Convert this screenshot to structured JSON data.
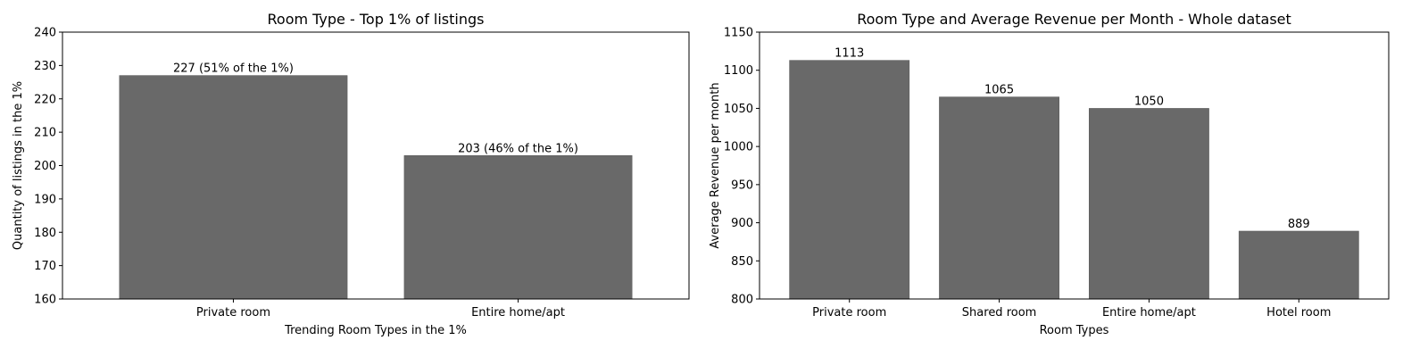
{
  "chart_data": [
    {
      "type": "bar",
      "title": "Room Type - Top 1% of listings",
      "xlabel": "Trending Room Types in the 1%",
      "ylabel": "Quantity of listings in the 1%",
      "categories": [
        "Private room",
        "Entire home/apt"
      ],
      "values": [
        227,
        203
      ],
      "data_labels": [
        "227 (51% of the 1%)",
        "203 (46% of the 1%)"
      ],
      "ylim": [
        160,
        240
      ],
      "yticks": [
        160,
        170,
        180,
        190,
        200,
        210,
        220,
        230,
        240
      ],
      "bar_color": "#696969",
      "grid": false
    },
    {
      "type": "bar",
      "title": "Room Type and Average Revenue per Month - Whole dataset",
      "xlabel": "Room Types",
      "ylabel": "Average Revenue per month",
      "categories": [
        "Private room",
        "Shared room",
        "Entire home/apt",
        "Hotel room"
      ],
      "values": [
        1113,
        1065,
        1050,
        889
      ],
      "data_labels": [
        "1113",
        "1065",
        "1050",
        "889"
      ],
      "ylim": [
        800,
        1150
      ],
      "yticks": [
        800,
        850,
        900,
        950,
        1000,
        1050,
        1100,
        1150
      ],
      "bar_color": "#696969",
      "grid": false
    }
  ]
}
